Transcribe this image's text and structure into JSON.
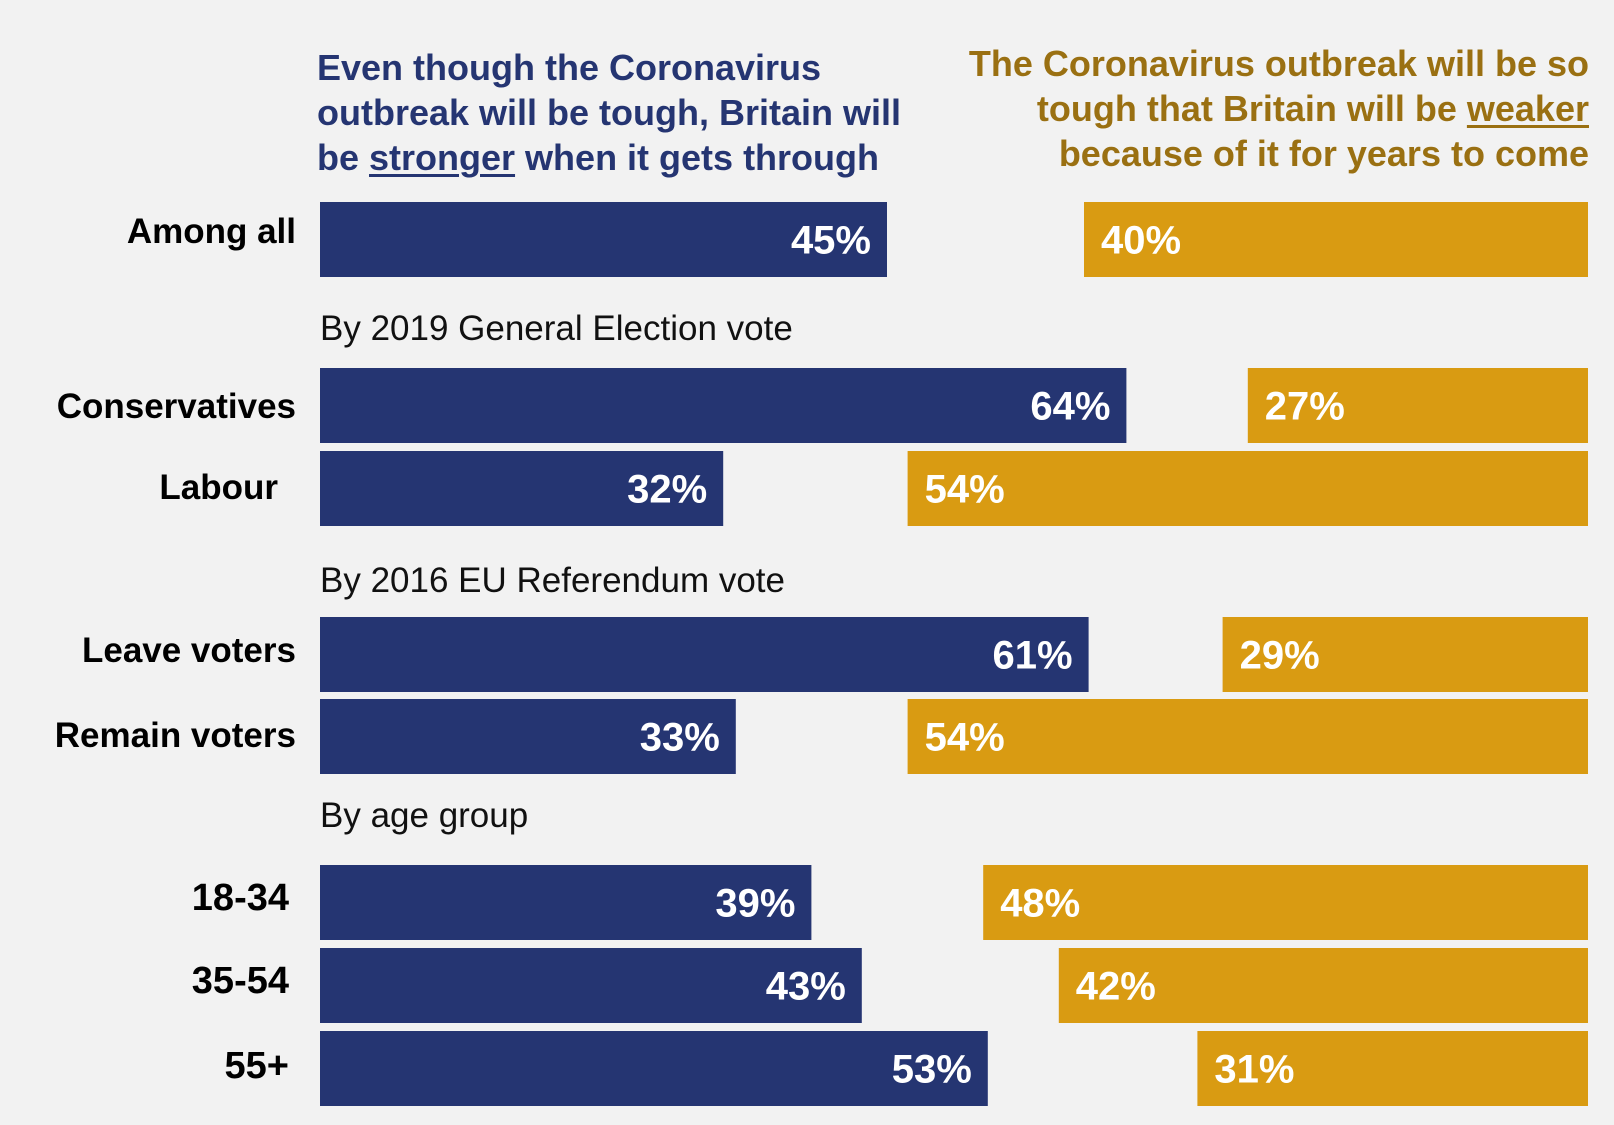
{
  "chart_data": {
    "type": "bar",
    "orientation": "horizontal-diverging",
    "series": [
      {
        "name": "Even though the Coronavirus outbreak will be tough, Britain will be stronger when it gets through",
        "color": "#253572",
        "values": [
          45,
          64,
          32,
          61,
          33,
          39,
          43,
          53
        ]
      },
      {
        "name": "The Coronavirus outbreak will be so tough that Britain will be weaker because of it for years to come",
        "color": "#d99b12",
        "values": [
          40,
          27,
          54,
          29,
          54,
          48,
          42,
          31
        ]
      }
    ],
    "categories": [
      "Among all",
      "Conservatives",
      "Labour",
      "Leave voters",
      "Remain voters",
      "18-34",
      "35-54",
      "55+"
    ],
    "value_labels": {
      "stronger": [
        "45%",
        "64%",
        "32%",
        "61%",
        "33%",
        "39%",
        "43%",
        "53%"
      ],
      "weaker": [
        "40%",
        "27%",
        "54%",
        "29%",
        "54%",
        "48%",
        "42%",
        "31%"
      ]
    },
    "groups": [
      {
        "label": "",
        "categories": [
          "Among all"
        ]
      },
      {
        "label": "By 2019 General Election vote",
        "categories": [
          "Conservatives",
          "Labour"
        ]
      },
      {
        "label": "By 2016 EU Referendum vote",
        "categories": [
          "Leave voters",
          "Remain voters"
        ]
      },
      {
        "label": "By age group",
        "categories": [
          "18-34",
          "35-54",
          "55+"
        ]
      }
    ],
    "xlim": [
      0,
      100
    ]
  },
  "headers": {
    "left": {
      "before": "Even though the Coronavirus outbreak will be tough, Britain will be ",
      "emphasis": "stronger",
      "after": " when it gets through"
    },
    "right": {
      "before": "The Coronavirus outbreak will be so tough that Britain will be ",
      "emphasis": "weaker",
      "after": " because of it for years to come"
    }
  },
  "sections": {
    "election": "By 2019 General Election vote",
    "referendum": "By 2016 EU Referendum vote",
    "age": "By age group"
  },
  "colors": {
    "stronger": "#253572",
    "weaker": "#d99b12",
    "background": "#f2f2f2"
  }
}
